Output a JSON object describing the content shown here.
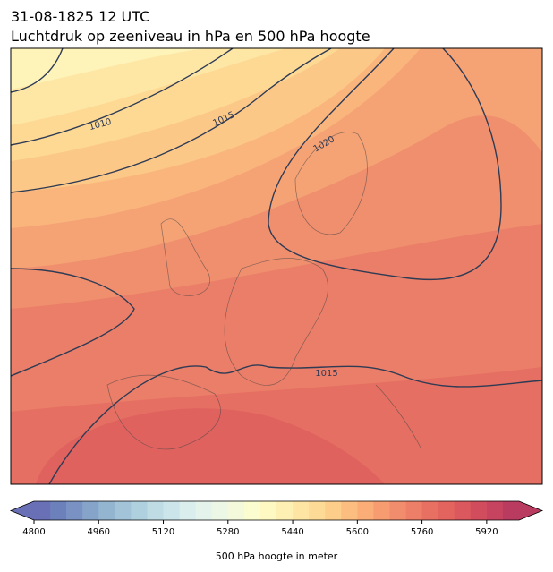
{
  "map": {
    "title": "31-08-1825 12 UTC",
    "subtitle": "Luchtdruk op zeeniveau in hPa en 500 hPa hoogte",
    "isobar_labels": [
      1010,
      1015,
      1020,
      1015
    ]
  },
  "colorbar": {
    "label": "500 hPa hoogte in meter",
    "lim": [
      4800,
      6000
    ],
    "ticks": [
      4800,
      4960,
      5120,
      5280,
      5440,
      5600,
      5760,
      5920
    ],
    "levels": [
      4800,
      4840,
      4880,
      4920,
      4960,
      5000,
      5040,
      5080,
      5120,
      5160,
      5200,
      5240,
      5280,
      5320,
      5360,
      5400,
      5440,
      5480,
      5520,
      5560,
      5600,
      5640,
      5680,
      5720,
      5760,
      5800,
      5840,
      5880,
      5920,
      5960,
      6000
    ],
    "colors": [
      "#6a70b6",
      "#6c80bb",
      "#7a92c3",
      "#86a4c9",
      "#93b5cf",
      "#a3c4d8",
      "#afd0de",
      "#bfdce5",
      "#cbe5eb",
      "#d9eeed",
      "#e4f3ec",
      "#edf7e6",
      "#f4f9dc",
      "#fbfcd0",
      "#fef9c3",
      "#feefb3",
      "#fee5a3",
      "#fdda96",
      "#fdcd8a",
      "#fcbe80",
      "#fbad78",
      "#f79c71",
      "#f18d6c",
      "#ed7e67",
      "#e87063",
      "#e3645f",
      "#db585e",
      "#d14d5e",
      "#c6445f",
      "#b93b60"
    ]
  }
}
